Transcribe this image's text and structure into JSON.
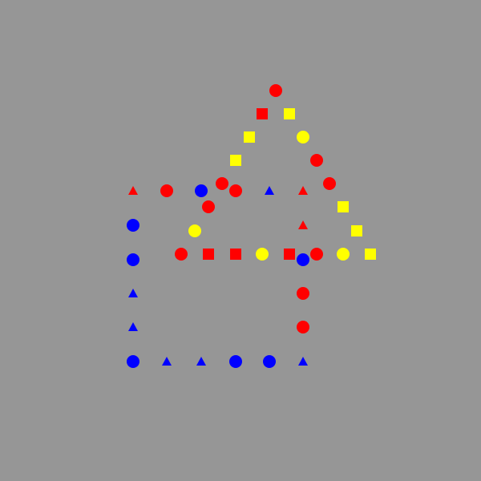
{
  "background_color": "#969696",
  "colors": {
    "red": "#ff0000",
    "yellow": "#ffff00",
    "blue": "#0000ff"
  },
  "shapes": [
    {
      "shape": "circle",
      "color": "red"
    },
    {
      "shape": "square",
      "color": "red"
    },
    {
      "shape": "square",
      "color": "yellow"
    },
    {
      "shape": "square",
      "color": "yellow"
    },
    {
      "shape": "circle",
      "color": "yellow"
    },
    {
      "shape": "square",
      "color": "yellow"
    },
    {
      "shape": "circle",
      "color": "red"
    },
    {
      "shape": "circle",
      "color": "red"
    },
    {
      "shape": "circle",
      "color": "red"
    },
    {
      "shape": "triangle",
      "color": "red"
    },
    {
      "shape": "circle",
      "color": "red"
    },
    {
      "shape": "circle",
      "color": "blue"
    },
    {
      "shape": "circle",
      "color": "red"
    },
    {
      "shape": "triangle",
      "color": "blue"
    },
    {
      "shape": "triangle",
      "color": "red"
    },
    {
      "shape": "circle",
      "color": "red"
    },
    {
      "shape": "square",
      "color": "yellow"
    },
    {
      "shape": "circle",
      "color": "blue"
    },
    {
      "shape": "triangle",
      "color": "red"
    },
    {
      "shape": "circle",
      "color": "yellow"
    },
    {
      "shape": "square",
      "color": "yellow"
    },
    {
      "shape": "circle",
      "color": "blue"
    },
    {
      "shape": "circle",
      "color": "red"
    },
    {
      "shape": "square",
      "color": "red"
    },
    {
      "shape": "square",
      "color": "red"
    },
    {
      "shape": "circle",
      "color": "yellow"
    },
    {
      "shape": "square",
      "color": "red"
    },
    {
      "shape": "circle",
      "color": "blue"
    },
    {
      "shape": "circle",
      "color": "red"
    },
    {
      "shape": "circle",
      "color": "yellow"
    },
    {
      "shape": "square",
      "color": "yellow"
    },
    {
      "shape": "triangle",
      "color": "blue"
    },
    {
      "shape": "circle",
      "color": "red"
    },
    {
      "shape": "triangle",
      "color": "blue"
    },
    {
      "shape": "circle",
      "color": "red"
    },
    {
      "shape": "circle",
      "color": "blue"
    },
    {
      "shape": "triangle",
      "color": "blue"
    },
    {
      "shape": "triangle",
      "color": "blue"
    },
    {
      "shape": "circle",
      "color": "blue"
    },
    {
      "shape": "circle",
      "color": "blue"
    },
    {
      "shape": "triangle",
      "color": "blue"
    }
  ]
}
